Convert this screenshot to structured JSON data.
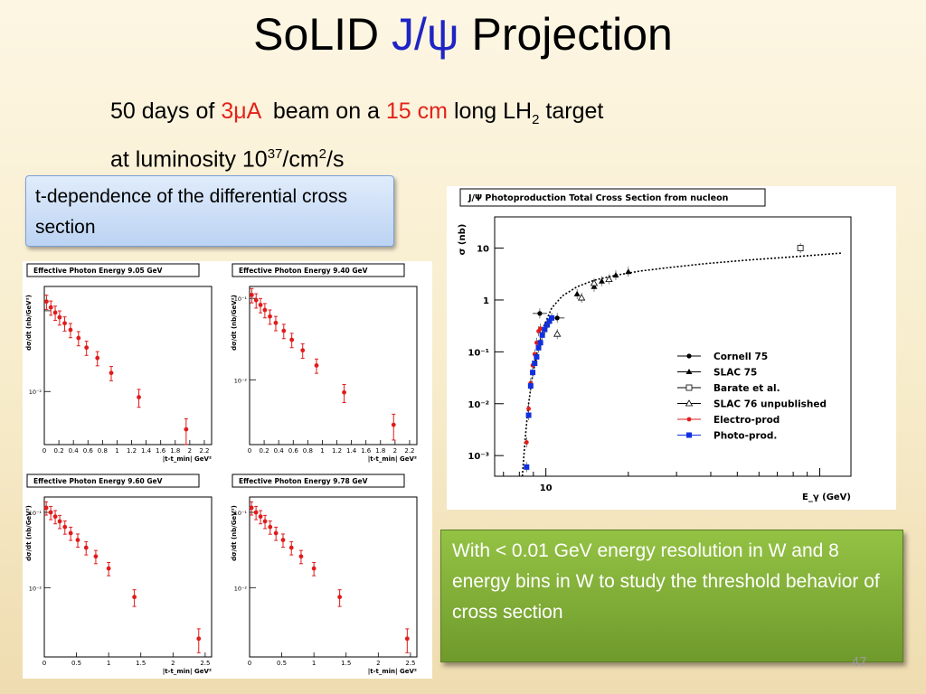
{
  "slide": {
    "title_prefix": "SoLID ",
    "title_accent": "J/ψ",
    "title_suffix": " Projection",
    "subtitle": {
      "t1": "50 days of ",
      "beam_current": "3μA",
      "t2": "  beam on a ",
      "target_length": "15 cm",
      "t3": " long LH",
      "sub2": "2",
      "t4": " target",
      "lumi_text": "at luminosity 10",
      "sup37": "37",
      "per_cm": "/cm",
      "sup2": "2",
      "per_s": "/s"
    },
    "callout_blue": " t-dependence of the differential cross section",
    "callout_green": "With < 0.01 GeV energy resolution in W and  8 energy bins in W to study the threshold behavior of cross section",
    "slide_number": "47"
  },
  "colors": {
    "accent": "#1f24c4",
    "highlight": "#e2231a",
    "data_red": "#e11b1b",
    "data_blue": "#1030e0"
  },
  "chart_data": [
    {
      "type": "scatter",
      "title": "Effective Photon Energy 9.05 GeV",
      "xlabel": "|t-t_min| GeV²",
      "ylabel": "dσ/dt (nb/GeV²)",
      "y_log": true,
      "xticks": [
        "0",
        "0.2",
        "0.4",
        "0.6",
        "0.8",
        "1",
        "1.2",
        "1.4",
        "1.6",
        "1.8",
        "2",
        "2.2"
      ],
      "ytick_label": "10⁻²",
      "xlim": [
        0,
        2.3
      ],
      "ylim": [
        0.0022,
        0.2
      ],
      "x": [
        0.03,
        0.09,
        0.15,
        0.21,
        0.28,
        0.36,
        0.47,
        0.58,
        0.73,
        0.92,
        1.3,
        1.95
      ],
      "y": [
        0.13,
        0.11,
        0.095,
        0.083,
        0.07,
        0.058,
        0.046,
        0.035,
        0.026,
        0.017,
        0.0085,
        0.0034
      ],
      "err": [
        0.2,
        0.2,
        0.2,
        0.2,
        0.2,
        0.2,
        0.2,
        0.2,
        0.2,
        0.2,
        0.25,
        0.35
      ]
    },
    {
      "type": "scatter",
      "title": "Effective Photon Energy 9.40 GeV",
      "xlabel": "|t-t_min| GeV²",
      "ylabel": "dσ/dt (nb/GeV²)",
      "y_log": true,
      "xticks": [
        "0",
        "0.2",
        "0.4",
        "0.6",
        "0.8",
        "1",
        "1.2",
        "1.4",
        "1.6",
        "1.8",
        "2",
        "2.2"
      ],
      "ytick_label": "10⁻²",
      "ytick_top": "10⁻¹",
      "xlim": [
        0,
        2.3
      ],
      "ylim": [
        0.0016,
        0.14
      ],
      "x": [
        0.03,
        0.09,
        0.15,
        0.21,
        0.28,
        0.36,
        0.47,
        0.58,
        0.73,
        0.92,
        1.3,
        1.98
      ],
      "y": [
        0.11,
        0.095,
        0.083,
        0.072,
        0.06,
        0.05,
        0.04,
        0.031,
        0.023,
        0.015,
        0.007,
        0.0028
      ],
      "err": [
        0.2,
        0.2,
        0.2,
        0.2,
        0.2,
        0.2,
        0.2,
        0.2,
        0.2,
        0.2,
        0.25,
        0.35
      ]
    },
    {
      "type": "scatter",
      "title": "Effective Photon Energy 9.60 GeV",
      "xlabel": "|t-t_min| GeV²",
      "ylabel": "dσ/dt (nb/GeV²)",
      "y_log": true,
      "xticks": [
        "0",
        "0.5",
        "1",
        "1.5",
        "2",
        "2.5"
      ],
      "ytick_label": "10⁻²",
      "ytick_top": "10⁻¹",
      "xlim": [
        0,
        2.6
      ],
      "ylim": [
        0.0012,
        0.16
      ],
      "x": [
        0.03,
        0.1,
        0.17,
        0.24,
        0.32,
        0.41,
        0.52,
        0.65,
        0.8,
        1.0,
        1.4,
        2.4
      ],
      "y": [
        0.115,
        0.1,
        0.088,
        0.076,
        0.064,
        0.053,
        0.043,
        0.034,
        0.026,
        0.018,
        0.0075,
        0.0021
      ],
      "err": [
        0.2,
        0.2,
        0.2,
        0.2,
        0.2,
        0.2,
        0.2,
        0.2,
        0.2,
        0.2,
        0.25,
        0.35
      ]
    },
    {
      "type": "scatter",
      "title": "Effective Photon Energy 9.78 GeV",
      "xlabel": "|t-t_min| GeV²",
      "ylabel": "dσ/dt (nb/GeV²)",
      "y_log": true,
      "xticks": [
        "0",
        "0.5",
        "1",
        "1.5",
        "2",
        "2.5"
      ],
      "ytick_label": "10⁻²",
      "ytick_top": "10⁻¹",
      "xlim": [
        0,
        2.6
      ],
      "ylim": [
        0.0012,
        0.16
      ],
      "x": [
        0.03,
        0.1,
        0.17,
        0.24,
        0.32,
        0.41,
        0.52,
        0.65,
        0.8,
        1.0,
        1.4,
        2.45
      ],
      "y": [
        0.115,
        0.1,
        0.088,
        0.076,
        0.064,
        0.053,
        0.043,
        0.034,
        0.026,
        0.018,
        0.0075,
        0.0021
      ],
      "err": [
        0.2,
        0.2,
        0.2,
        0.2,
        0.2,
        0.2,
        0.2,
        0.2,
        0.2,
        0.2,
        0.25,
        0.35
      ]
    },
    {
      "type": "scatter",
      "title": "J/Ψ Photoproduction Total Cross Section from nucleon",
      "xlabel": "E_γ (GeV)",
      "ylabel": "σ (nb)",
      "x_log": true,
      "y_log": true,
      "xlim": [
        6.5,
        130
      ],
      "ylim": [
        0.0004,
        40
      ],
      "xtick_label": "10",
      "ytick_labels": [
        "10⁻³",
        "10⁻²",
        "10⁻¹",
        "1",
        "10"
      ],
      "legend_position": "bottom-right",
      "fit_curve": {
        "x": [
          8.2,
          8.4,
          8.6,
          8.9,
          9.3,
          9.8,
          10.5,
          11.5,
          13,
          15,
          18,
          22,
          28,
          38,
          55,
          80,
          120
        ],
        "y": [
          0.0004,
          0.002,
          0.008,
          0.03,
          0.1,
          0.3,
          0.7,
          1.2,
          1.8,
          2.4,
          3.0,
          3.6,
          4.2,
          5.0,
          5.9,
          6.8,
          8.0
        ]
      },
      "series": [
        {
          "name": "Cornell 75",
          "marker": "filled-circle",
          "x": [
            9.5,
            11.0
          ],
          "y": [
            0.55,
            0.45
          ]
        },
        {
          "name": "SLAC 75",
          "marker": "filled-triangle",
          "x": [
            13.0,
            15.0,
            16.0,
            18.0,
            20.0
          ],
          "y": [
            1.3,
            1.8,
            2.3,
            3.0,
            3.5
          ]
        },
        {
          "name": "Barate et al.",
          "marker": "open-square",
          "x": [
            85.0
          ],
          "y": [
            10.0
          ]
        },
        {
          "name": "SLAC 76 unpublished",
          "marker": "open-triangle",
          "x": [
            11.0,
            13.5,
            15.0,
            17.0
          ],
          "y": [
            0.22,
            1.1,
            2.1,
            2.5
          ]
        },
        {
          "name": "Electro-prod",
          "marker": "filled-circle-red",
          "x": [
            8.5,
            8.65,
            8.8,
            8.95,
            9.1,
            9.25,
            9.4,
            9.55
          ],
          "y": [
            0.0018,
            0.008,
            0.025,
            0.055,
            0.09,
            0.15,
            0.25,
            0.28
          ]
        },
        {
          "name": "Photo-prod.",
          "marker": "filled-square-blue",
          "x": [
            8.5,
            8.65,
            8.8,
            8.95,
            9.1,
            9.25,
            9.4,
            9.55,
            9.7,
            9.9,
            10.1,
            10.3,
            10.5
          ],
          "y": [
            0.0006,
            0.006,
            0.022,
            0.04,
            0.06,
            0.08,
            0.12,
            0.15,
            0.21,
            0.27,
            0.33,
            0.39,
            0.45
          ]
        }
      ]
    }
  ]
}
